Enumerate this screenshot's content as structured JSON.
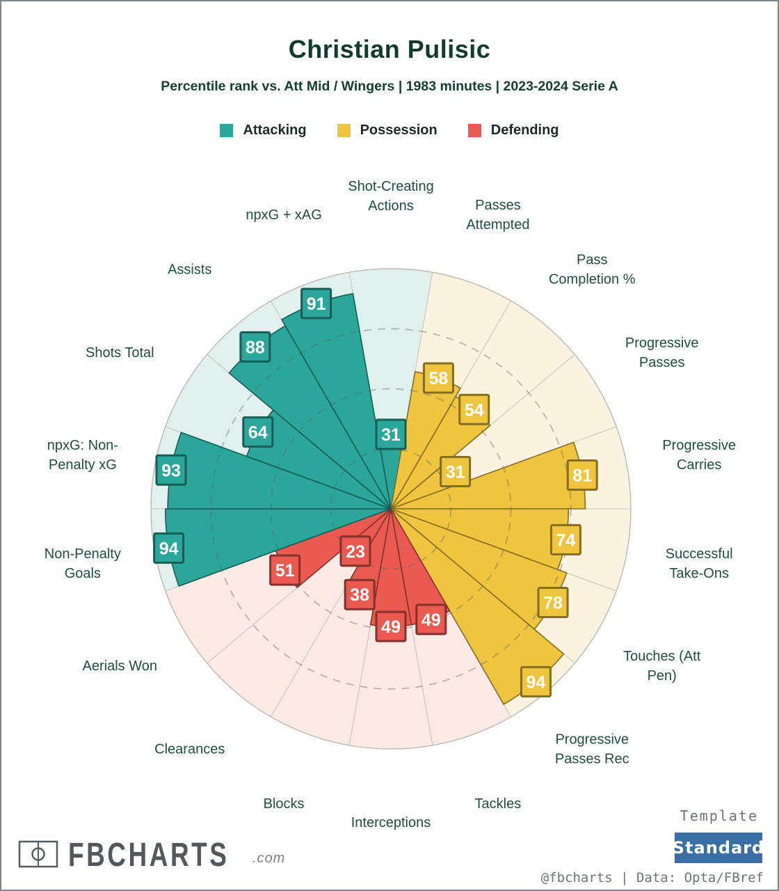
{
  "header": {
    "title": "Christian Pulisic",
    "subtitle": "Percentile rank vs. Att Mid / Wingers | 1983 minutes | 2023-2024 Serie A"
  },
  "legend": [
    {
      "label": "Attacking",
      "color": "#2aa79a"
    },
    {
      "label": "Possession",
      "color": "#efc53f"
    },
    {
      "label": "Defending",
      "color": "#eb5a50"
    }
  ],
  "chart_data": {
    "type": "pizza-radar",
    "rlim": [
      0,
      100
    ],
    "gridlines": [
      25,
      50,
      75
    ],
    "grid_style": "dashed",
    "start_metric_angle_deg": 0,
    "colors": {
      "Attacking": {
        "fill": "#2aa79a",
        "bg": "#e0f0ed"
      },
      "Possession": {
        "fill": "#efc53f",
        "bg": "#faf3df"
      },
      "Defending": {
        "fill": "#eb5a50",
        "bg": "#fbe9e6"
      }
    },
    "metrics": [
      {
        "label": "Shot-Creating Actions",
        "lines": [
          "Shot-Creating",
          "Actions"
        ],
        "group": "Attacking",
        "value": 31
      },
      {
        "label": "Passes Attempted",
        "lines": [
          "Passes",
          "Attempted"
        ],
        "group": "Possession",
        "value": 58
      },
      {
        "label": "Pass Completion %",
        "lines": [
          "Pass",
          "Completion %"
        ],
        "group": "Possession",
        "value": 54
      },
      {
        "label": "Progressive Passes",
        "lines": [
          "Progressive",
          "Passes"
        ],
        "group": "Possession",
        "value": 31
      },
      {
        "label": "Progressive Carries",
        "lines": [
          "Progressive",
          "Carries"
        ],
        "group": "Possession",
        "value": 81
      },
      {
        "label": "Successful Take-Ons",
        "lines": [
          "Successful",
          "Take-Ons"
        ],
        "group": "Possession",
        "value": 74
      },
      {
        "label": "Touches (Att Pen)",
        "lines": [
          "Touches (Att",
          "Pen)"
        ],
        "group": "Possession",
        "value": 78
      },
      {
        "label": "Progressive Passes Rec",
        "lines": [
          "Progressive",
          "Passes Rec"
        ],
        "group": "Possession",
        "value": 94
      },
      {
        "label": "Tackles",
        "lines": [
          "Tackles"
        ],
        "group": "Defending",
        "value": 49
      },
      {
        "label": "Interceptions",
        "lines": [
          "Interceptions"
        ],
        "group": "Defending",
        "value": 49
      },
      {
        "label": "Blocks",
        "lines": [
          "Blocks"
        ],
        "group": "Defending",
        "value": 38
      },
      {
        "label": "Clearances",
        "lines": [
          "Clearances"
        ],
        "group": "Defending",
        "value": 23
      },
      {
        "label": "Aerials Won",
        "lines": [
          "Aerials Won"
        ],
        "group": "Defending",
        "value": 51
      },
      {
        "label": "Non-Penalty Goals",
        "lines": [
          "Non-Penalty",
          "Goals"
        ],
        "group": "Attacking",
        "value": 94
      },
      {
        "label": "npxG: Non-Penalty xG",
        "lines": [
          "npxG: Non-",
          "Penalty xG"
        ],
        "group": "Attacking",
        "value": 93
      },
      {
        "label": "Shots Total",
        "lines": [
          "Shots Total"
        ],
        "group": "Attacking",
        "value": 64
      },
      {
        "label": "Assists",
        "lines": [
          "Assists"
        ],
        "group": "Attacking",
        "value": 88
      },
      {
        "label": "npxG + xAG",
        "lines": [
          "npxG + xAG"
        ],
        "group": "Attacking",
        "value": 91
      }
    ]
  },
  "footer": {
    "brand": "FBCHARTS",
    "brand_suffix": ".com",
    "template_label": "Template",
    "template_value": "Standard",
    "credit": "@fbcharts | Data: Opta/FBref",
    "button_color": "#3a6fa5"
  }
}
